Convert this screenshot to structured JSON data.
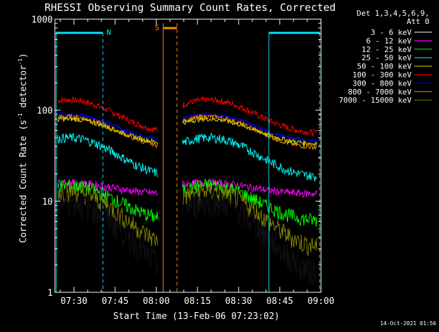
{
  "chart_data": {
    "type": "line",
    "title": "RHESSI Observing Summary Count Rates, Corrected",
    "xlabel": "Start Time (13-Feb-06 07:23:02)",
    "ylabel_main": "Corrected Count Rate (s",
    "ylabel_sup1": "-1",
    "ylabel_mid": " detector",
    "ylabel_sup2": "-1",
    "ylabel_end": ")",
    "yscale": "log",
    "ylim": [
      1,
      1000
    ],
    "xlim_minutes": [
      0,
      97
    ],
    "x_ticks": [
      "07:30",
      "07:45",
      "08:00",
      "08:15",
      "08:30",
      "08:45",
      "09:00"
    ],
    "y_ticks": [
      "1000",
      "100",
      "10",
      "1"
    ],
    "legend_header": [
      "Det 1,3,4,5,6,9,",
      "Att 0"
    ],
    "series": [
      {
        "name": "3 - 6 keV",
        "color": "#000000"
      },
      {
        "name": "6 - 12 keV",
        "color": "#ff00ff"
      },
      {
        "name": "12 - 25 keV",
        "color": "#00ff00"
      },
      {
        "name": "25 - 50 keV",
        "color": "#00ffff"
      },
      {
        "name": "50 - 100 keV",
        "color": "#d4d400"
      },
      {
        "name": "100 - 300 keV",
        "color": "#ff0000"
      },
      {
        "name": "300 - 800 keV",
        "color": "#0000ff"
      },
      {
        "name": "800 - 7000 keV",
        "color": "#ff8c00"
      },
      {
        "name": "7000 - 15000 keV",
        "color": "#808000"
      }
    ],
    "flags": {
      "n_label": "N",
      "s_label": "S"
    },
    "footer": "14-Oct-2021 01:56"
  }
}
